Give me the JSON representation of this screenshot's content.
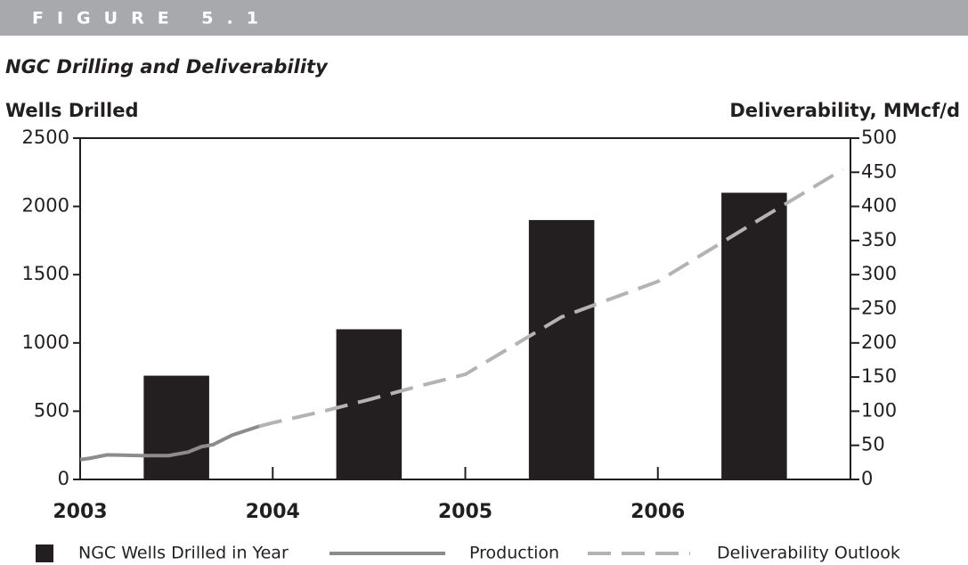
{
  "chart_data": {
    "type": "bar-line",
    "header": "FIGURE 5.1",
    "title": "NGC Drilling and Deliverability",
    "y_label": "Wells Drilled",
    "y2_label": "Deliverability, MMcf/d",
    "xlim": [
      2003,
      2007
    ],
    "xticks": [
      2003,
      2004,
      2005,
      2006
    ],
    "ylim": [
      0,
      2500
    ],
    "yticks": [
      0,
      500,
      1000,
      1500,
      2000,
      2500
    ],
    "y2lim": [
      0,
      500
    ],
    "y2ticks": [
      0,
      50,
      100,
      150,
      200,
      250,
      300,
      350,
      400,
      450,
      500
    ],
    "series": [
      {
        "name": "NGC Wells Drilled in Year",
        "type": "bar",
        "color": "#231f20",
        "x": [
          2003.5,
          2004.5,
          2005.5,
          2006.5
        ],
        "values": [
          760,
          1100,
          1900,
          2100
        ]
      },
      {
        "name": "Production",
        "type": "line",
        "axis": "y2",
        "color": "#8c8c8c",
        "x": [
          2003,
          2003.05,
          2003.14,
          2003.32,
          2003.46,
          2003.56,
          2003.63,
          2003.69,
          2003.79,
          2003.93
        ],
        "values": [
          29,
          31,
          36,
          35,
          35,
          40,
          48,
          51,
          65,
          78
        ]
      },
      {
        "name": "Deliverability Outlook",
        "type": "dashed",
        "axis": "y2",
        "color": "#b3b3b3",
        "x": [
          2003.93,
          2004,
          2004.25,
          2004.5,
          2004.75,
          2005,
          2005.5,
          2006,
          2006.5,
          2006.96
        ],
        "values": [
          78,
          83,
          99,
          117,
          136,
          154,
          238,
          290,
          376,
          454
        ]
      }
    ]
  }
}
